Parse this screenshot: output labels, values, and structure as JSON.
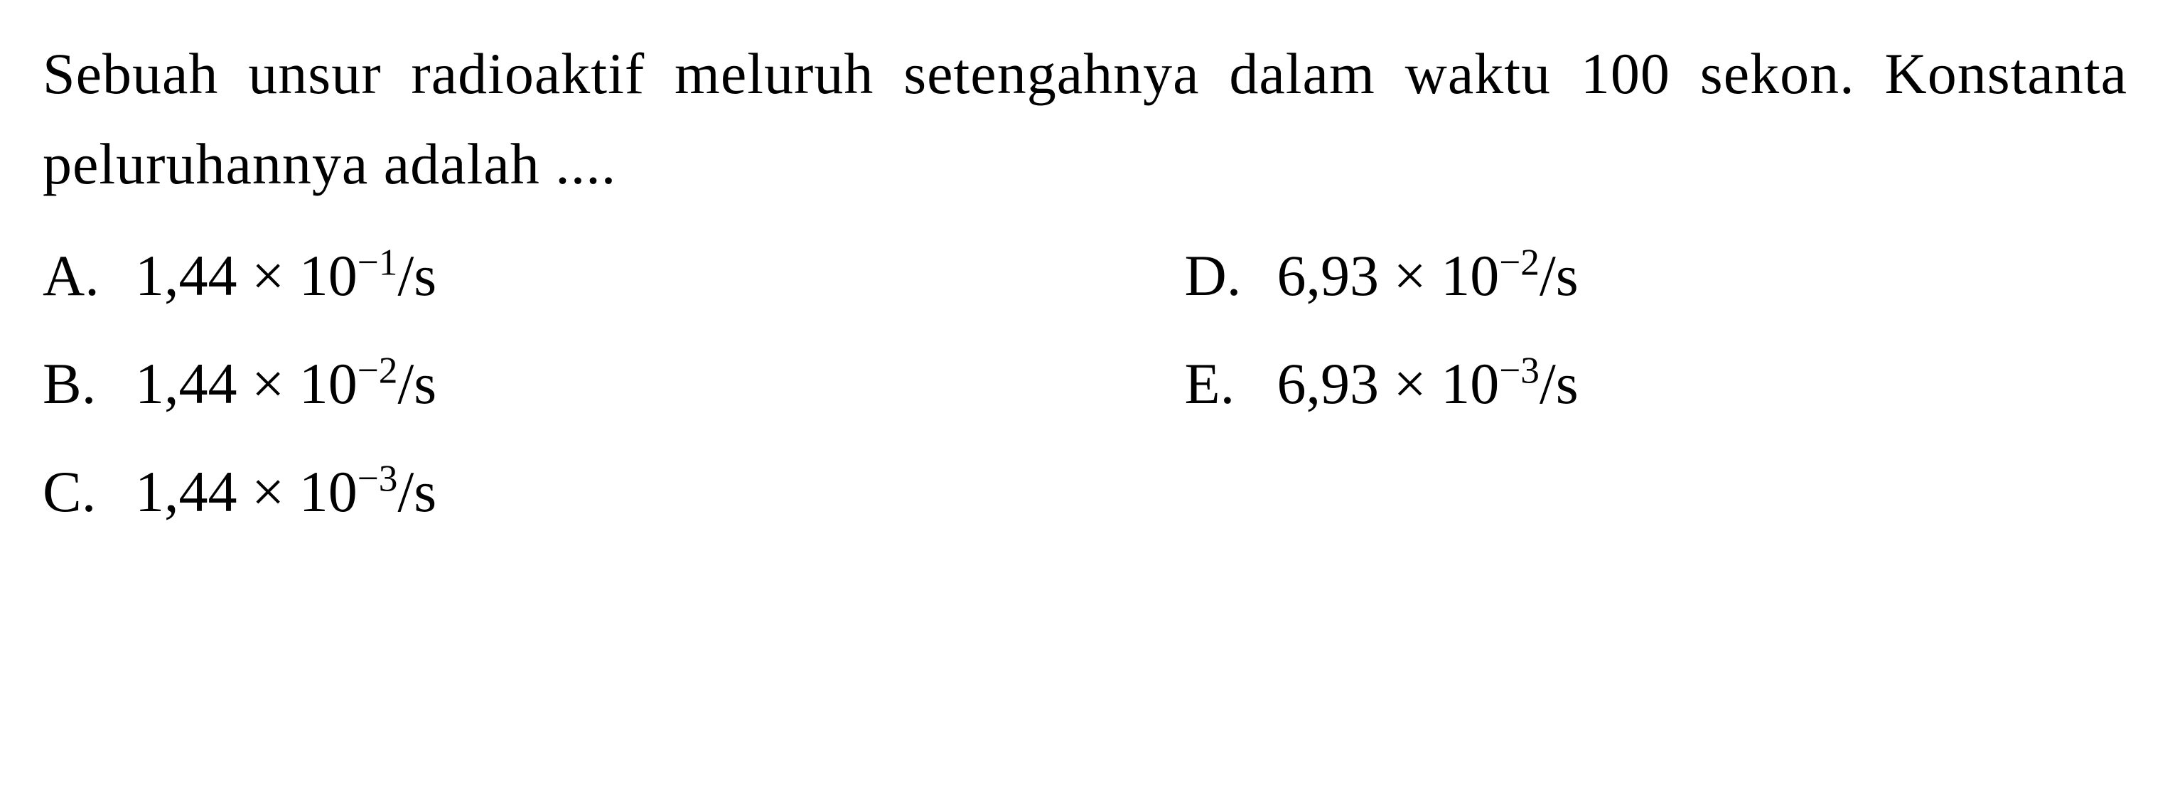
{
  "question": {
    "text": "Sebuah unsur radioaktif meluruh setengahnya dalam waktu 100 sekon. Konstanta peluruhannya adalah ....",
    "font_size": 82,
    "text_color": "#000000",
    "background_color": "#ffffff"
  },
  "options": {
    "a": {
      "letter": "A.",
      "coefficient": "1,44",
      "exponent": "−1",
      "unit": "/s"
    },
    "b": {
      "letter": "B.",
      "coefficient": "1,44",
      "exponent": "−2",
      "unit": "/s"
    },
    "c": {
      "letter": "C.",
      "coefficient": "1,44",
      "exponent": "−3",
      "unit": "/s"
    },
    "d": {
      "letter": "D.",
      "coefficient": "6,93",
      "exponent": "−2",
      "unit": "/s"
    },
    "e": {
      "letter": "E.",
      "coefficient": "6,93",
      "exponent": "−3",
      "unit": "/s"
    }
  },
  "layout": {
    "columns": 2,
    "left_options": [
      "a",
      "b",
      "c"
    ],
    "right_options": [
      "d",
      "e"
    ]
  }
}
